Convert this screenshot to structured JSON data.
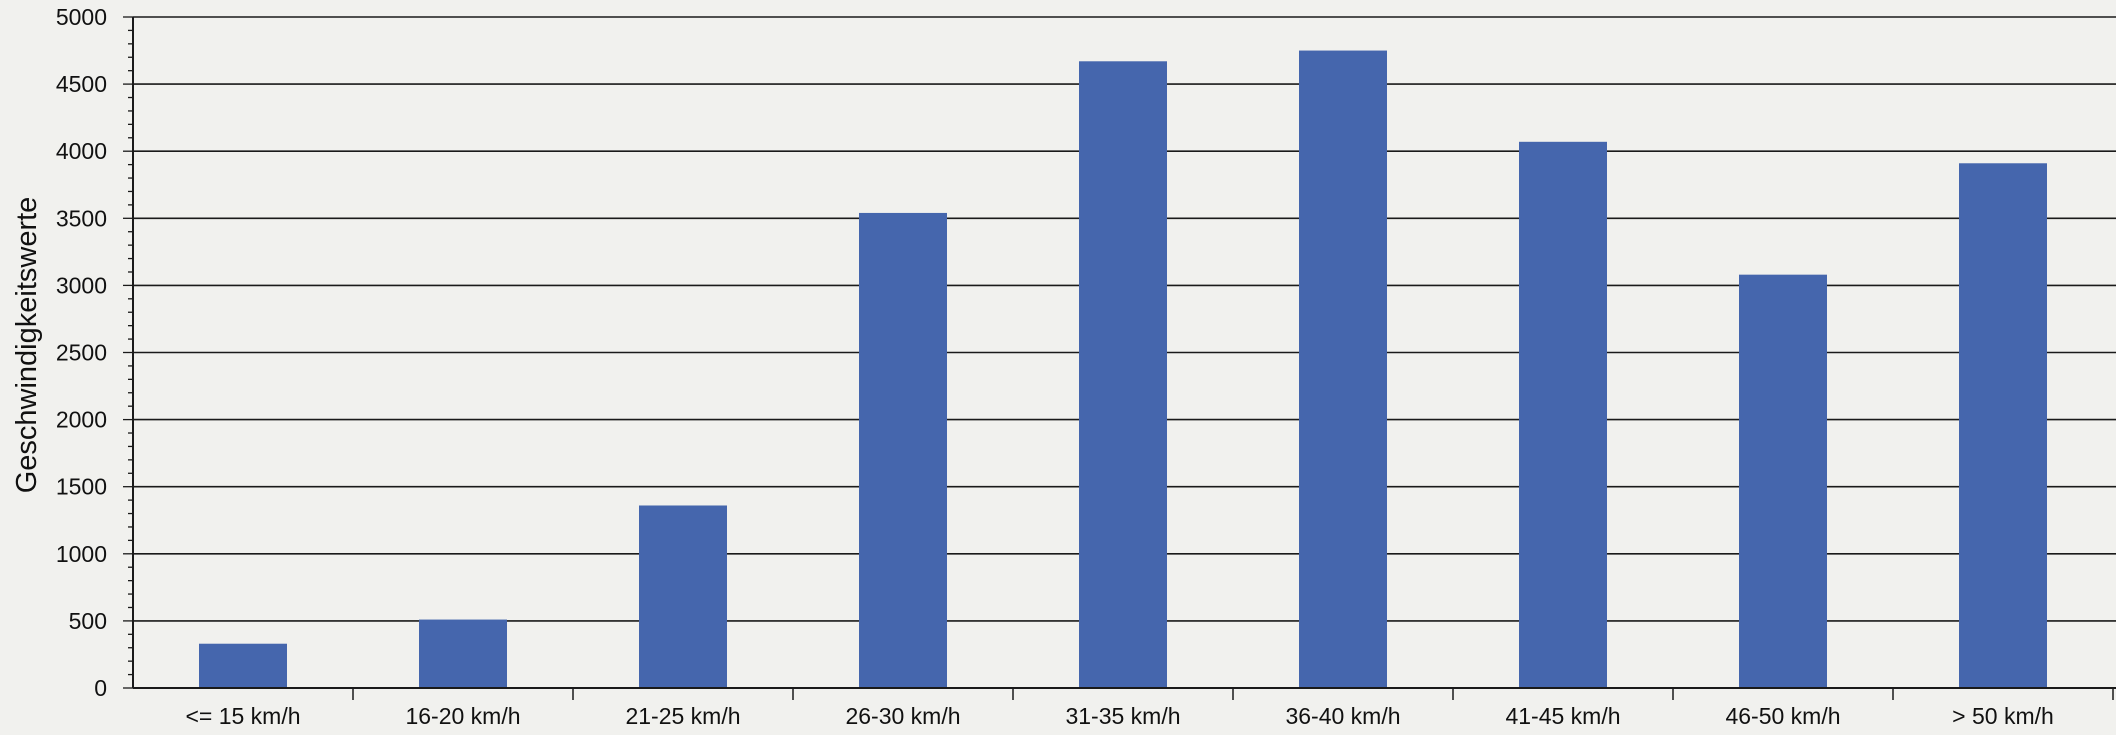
{
  "chart_data": {
    "type": "bar",
    "title": "",
    "xlabel": "",
    "ylabel": "Geschwindigkeitswerte",
    "categories": [
      "<= 15 km/h",
      "16-20 km/h",
      "21-25 km/h",
      "26-30 km/h",
      "31-35 km/h",
      "36-40 km/h",
      "41-45 km/h",
      "46-50 km/h",
      "> 50 km/h"
    ],
    "values": [
      330,
      510,
      1360,
      3540,
      4670,
      4750,
      4070,
      3080,
      3910
    ],
    "ylim": [
      0,
      5000
    ],
    "yticks": [
      0,
      500,
      1000,
      1500,
      2000,
      2500,
      3000,
      3500,
      4000,
      4500,
      5000
    ],
    "grid": true,
    "legend": "none",
    "bar_color": "#4566ad",
    "grid_color": "#1a1a1a",
    "background": "#f1f1ee"
  }
}
